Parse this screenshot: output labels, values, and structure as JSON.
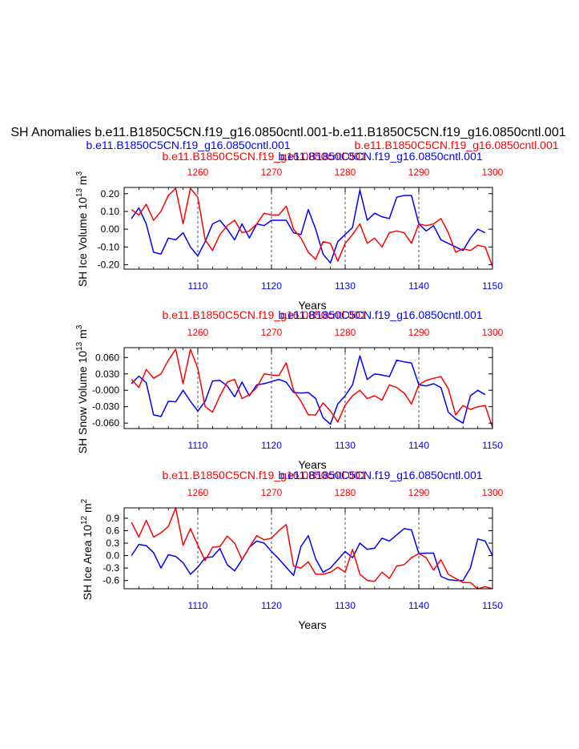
{
  "colors": {
    "blue": "#0000ff",
    "red": "#ff0000",
    "black": "#000000"
  },
  "figure_title": "SH Anomalies b.e11.B1850C5CN.f19_g16.0850cntl.001-b.e11.B1850C5CN.f19_g16.0850cntl.001",
  "legend_top": {
    "blue": "b.e11.B1850C5CN.f19_g16.0850cntl.001",
    "red": "b.e11.B1850C5CN.f19_g16.0850cntl.001"
  },
  "chart_data": [
    {
      "type": "line",
      "title_red": "b.e11.B1850C5CN.f19_g16.0850cntl.001",
      "title_blue": "b.e11.B1850C5CN.f19_g16.0850cntl.001",
      "ylabel": "SH Ice Volume 10",
      "ylabel_exp": "13",
      "ylabel_unit": " m",
      "ylabel_unit_exp": "3",
      "xlabel": "Years",
      "ylim": [
        -0.225,
        0.235
      ],
      "yticks": [
        "0.20",
        "0.10",
        "0.00",
        "-0.10",
        "-0.20"
      ],
      "yticks_values": [
        0.2,
        0.1,
        0.0,
        -0.1,
        -0.2
      ],
      "x_bottom": {
        "range": [
          1100,
          1150
        ],
        "ticks": [
          "1110",
          "1120",
          "1130",
          "1140",
          "1150"
        ]
      },
      "x_top": {
        "range": [
          1250,
          1300
        ],
        "ticks": [
          "1260",
          "1270",
          "1280",
          "1290",
          "1300"
        ]
      },
      "series": [
        {
          "name": "blue",
          "color": "#0000ff",
          "start": 1101,
          "values": [
            0.06,
            0.12,
            0.03,
            -0.13,
            -0.14,
            -0.05,
            -0.06,
            -0.02,
            -0.1,
            -0.15,
            -0.07,
            0.03,
            0.05,
            0.0,
            -0.06,
            0.03,
            -0.05,
            0.03,
            0.02,
            0.05,
            0.05,
            0.05,
            -0.02,
            -0.03,
            0.11,
            0.0,
            -0.14,
            -0.19,
            -0.07,
            -0.03,
            0.01,
            0.22,
            0.05,
            0.09,
            0.07,
            0.06,
            0.18,
            0.19,
            0.19,
            0.03,
            -0.01,
            0.02,
            -0.06,
            -0.08,
            -0.1,
            -0.12,
            -0.05,
            0.0,
            -0.02
          ]
        },
        {
          "name": "red",
          "color": "#ff0000",
          "start": 1101,
          "values": [
            0.11,
            0.08,
            0.14,
            0.05,
            0.1,
            0.19,
            0.23,
            0.03,
            0.23,
            0.18,
            -0.06,
            -0.12,
            -0.03,
            0.02,
            0.05,
            -0.02,
            -0.01,
            0.03,
            0.09,
            0.08,
            0.08,
            0.13,
            0.0,
            -0.05,
            -0.13,
            -0.17,
            -0.07,
            -0.08,
            -0.18,
            -0.08,
            -0.03,
            0.03,
            -0.08,
            -0.05,
            -0.1,
            -0.02,
            -0.01,
            -0.02,
            -0.08,
            0.03,
            0.02,
            0.03,
            0.06,
            -0.02,
            -0.13,
            -0.11,
            -0.12,
            -0.09,
            -0.1,
            -0.21
          ]
        }
      ]
    },
    {
      "type": "line",
      "title_red": "b.e11.B1850C5CN.f19_g16.0850cntl.001",
      "title_blue": "b.e11.B1850C5CN.f19_g16.0850cntl.001",
      "ylabel": "SH Snow Volume 10",
      "ylabel_exp": "13",
      "ylabel_unit": " m",
      "ylabel_unit_exp": "3",
      "xlabel": "Years",
      "ylim": [
        -0.07,
        0.078
      ],
      "yticks": [
        "0.060",
        "0.030",
        "-0.000",
        "-0.030",
        "-0.060"
      ],
      "yticks_values": [
        0.06,
        0.03,
        0.0,
        -0.03,
        -0.06
      ],
      "x_bottom": {
        "range": [
          1100,
          1150
        ],
        "ticks": [
          "1110",
          "1120",
          "1130",
          "1140",
          "1150"
        ]
      },
      "x_top": {
        "range": [
          1250,
          1300
        ],
        "ticks": [
          "1260",
          "1270",
          "1280",
          "1290",
          "1300"
        ]
      },
      "series": [
        {
          "name": "blue",
          "color": "#0000ff",
          "start": 1101,
          "values": [
            0.012,
            0.026,
            0.014,
            -0.045,
            -0.048,
            -0.02,
            -0.021,
            0.0,
            -0.02,
            -0.038,
            -0.02,
            0.017,
            0.018,
            0.008,
            -0.012,
            0.015,
            -0.01,
            0.01,
            0.012,
            0.016,
            0.02,
            0.015,
            -0.004,
            -0.005,
            -0.004,
            -0.015,
            -0.05,
            -0.062,
            -0.025,
            -0.01,
            0.01,
            0.063,
            0.02,
            0.03,
            0.028,
            0.025,
            0.055,
            0.052,
            0.05,
            0.01,
            0.008,
            0.012,
            0.005,
            -0.04,
            -0.052,
            -0.06,
            -0.01,
            0.0,
            -0.008
          ]
        },
        {
          "name": "red",
          "color": "#ff0000",
          "start": 1101,
          "values": [
            0.02,
            0.005,
            0.038,
            0.022,
            0.03,
            0.055,
            0.075,
            0.012,
            0.075,
            0.04,
            -0.03,
            -0.04,
            -0.01,
            0.015,
            0.02,
            -0.015,
            -0.008,
            0.005,
            0.03,
            0.028,
            0.027,
            0.05,
            0.0,
            -0.02,
            -0.045,
            -0.045,
            -0.023,
            -0.038,
            -0.058,
            -0.027,
            -0.01,
            0.0,
            -0.015,
            -0.01,
            -0.018,
            0.01,
            0.005,
            -0.005,
            -0.025,
            0.01,
            0.018,
            0.022,
            0.025,
            0.003,
            -0.045,
            -0.028,
            -0.035,
            -0.03,
            -0.028,
            -0.068
          ]
        }
      ]
    },
    {
      "type": "line",
      "title_red": "b.e11.B1850C5CN.f19_g16.0850cntl.001",
      "title_blue": "b.e11.B1850C5CN.f19_g16.0850cntl.001",
      "ylabel": "SH Ice Area 10",
      "ylabel_exp": "12",
      "ylabel_unit": " m",
      "ylabel_unit_exp": "2",
      "xlabel": "Years",
      "ylim": [
        -0.8,
        1.15
      ],
      "yticks": [
        "0.9",
        "0.6",
        "0.3",
        "0.0",
        "-0.3",
        "-0.6"
      ],
      "yticks_values": [
        0.9,
        0.6,
        0.3,
        0.0,
        -0.3,
        -0.6
      ],
      "x_bottom": {
        "range": [
          1100,
          1150
        ],
        "ticks": [
          "1110",
          "1120",
          "1130",
          "1140",
          "1150"
        ]
      },
      "x_top": {
        "range": [
          1250,
          1300
        ],
        "ticks": [
          "1260",
          "1270",
          "1280",
          "1290",
          "1300"
        ]
      },
      "series": [
        {
          "name": "blue",
          "color": "#0000ff",
          "start": 1101,
          "values": [
            0.0,
            0.27,
            0.24,
            0.07,
            -0.3,
            0.02,
            -0.02,
            -0.17,
            -0.45,
            -0.28,
            -0.05,
            -0.03,
            0.17,
            -0.22,
            -0.37,
            -0.1,
            0.2,
            0.35,
            0.3,
            0.1,
            -0.08,
            -0.28,
            -0.48,
            0.22,
            0.48,
            -0.08,
            -0.4,
            -0.3,
            -0.1,
            0.1,
            -0.05,
            0.3,
            0.15,
            0.18,
            0.42,
            0.35,
            0.5,
            0.65,
            0.62,
            0.05,
            0.06,
            0.06,
            -0.5,
            -0.58,
            -0.6,
            -0.6,
            -0.3,
            0.4,
            0.35,
            0.0
          ]
        },
        {
          "name": "red",
          "color": "#ff0000",
          "start": 1101,
          "values": [
            0.8,
            0.45,
            0.85,
            0.45,
            0.55,
            0.7,
            1.15,
            0.25,
            0.65,
            0.25,
            -0.12,
            0.2,
            0.22,
            0.47,
            0.3,
            -0.1,
            0.2,
            0.48,
            0.38,
            0.42,
            0.6,
            0.75,
            -0.25,
            -0.3,
            -0.15,
            -0.45,
            -0.45,
            -0.4,
            -0.28,
            -0.4,
            0.15,
            -0.45,
            -0.6,
            -0.62,
            -0.4,
            -0.55,
            -0.25,
            -0.22,
            -0.05,
            0.05,
            -0.05,
            -0.35,
            -0.1,
            -0.45,
            -0.55,
            -0.65,
            -0.65,
            -0.8,
            -0.75,
            -0.8
          ]
        }
      ]
    }
  ]
}
